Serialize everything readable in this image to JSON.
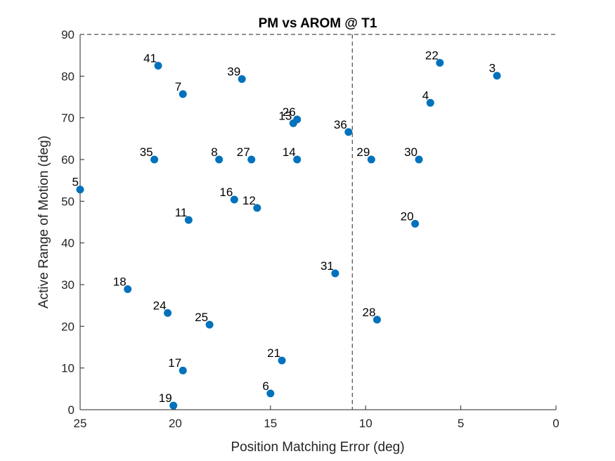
{
  "chart_data": {
    "type": "scatter",
    "title": "PM vs AROM @ T1",
    "xlabel": "Position Matching Error (deg)",
    "ylabel": "Active Range of Motion (deg)",
    "xlim": [
      0,
      25
    ],
    "ylim": [
      0,
      90
    ],
    "x_reversed": true,
    "xticks": [
      25,
      20,
      15,
      10,
      5,
      0
    ],
    "yticks": [
      0,
      10,
      20,
      30,
      40,
      50,
      60,
      70,
      80,
      90
    ],
    "grid": false,
    "reference_lines": {
      "vertical_x": 10.7,
      "horizontal_y": 90,
      "style": "dashed"
    },
    "marker_color": "#0072BD",
    "points": [
      {
        "label": "41",
        "x": 20.9,
        "y": 82.5
      },
      {
        "label": "22",
        "x": 6.1,
        "y": 83.2
      },
      {
        "label": "3",
        "x": 3.1,
        "y": 80.1
      },
      {
        "label": "39",
        "x": 16.5,
        "y": 79.3
      },
      {
        "label": "7",
        "x": 19.6,
        "y": 75.7
      },
      {
        "label": "4",
        "x": 6.6,
        "y": 73.6
      },
      {
        "label": "26",
        "x": 13.6,
        "y": 69.6
      },
      {
        "label": "13",
        "x": 13.8,
        "y": 68.7
      },
      {
        "label": "36",
        "x": 10.9,
        "y": 66.6
      },
      {
        "label": "35",
        "x": 21.1,
        "y": 60.0
      },
      {
        "label": "8",
        "x": 17.7,
        "y": 60.0
      },
      {
        "label": "27",
        "x": 16.0,
        "y": 60.0
      },
      {
        "label": "14",
        "x": 13.6,
        "y": 60.0
      },
      {
        "label": "29",
        "x": 9.7,
        "y": 60.0
      },
      {
        "label": "30",
        "x": 7.2,
        "y": 60.0
      },
      {
        "label": "5",
        "x": 25.0,
        "y": 52.8
      },
      {
        "label": "16",
        "x": 16.9,
        "y": 50.4
      },
      {
        "label": "12",
        "x": 15.7,
        "y": 48.4
      },
      {
        "label": "11",
        "x": 19.3,
        "y": 45.5
      },
      {
        "label": "20",
        "x": 7.4,
        "y": 44.6
      },
      {
        "label": "31",
        "x": 11.6,
        "y": 32.7
      },
      {
        "label": "18",
        "x": 22.5,
        "y": 28.9
      },
      {
        "label": "24",
        "x": 20.4,
        "y": 23.2
      },
      {
        "label": "28",
        "x": 9.4,
        "y": 21.6
      },
      {
        "label": "25",
        "x": 18.2,
        "y": 20.4
      },
      {
        "label": "21",
        "x": 14.4,
        "y": 11.8
      },
      {
        "label": "17",
        "x": 19.6,
        "y": 9.4
      },
      {
        "label": "6",
        "x": 15.0,
        "y": 3.9
      },
      {
        "label": "19",
        "x": 20.1,
        "y": 1.0
      }
    ]
  }
}
